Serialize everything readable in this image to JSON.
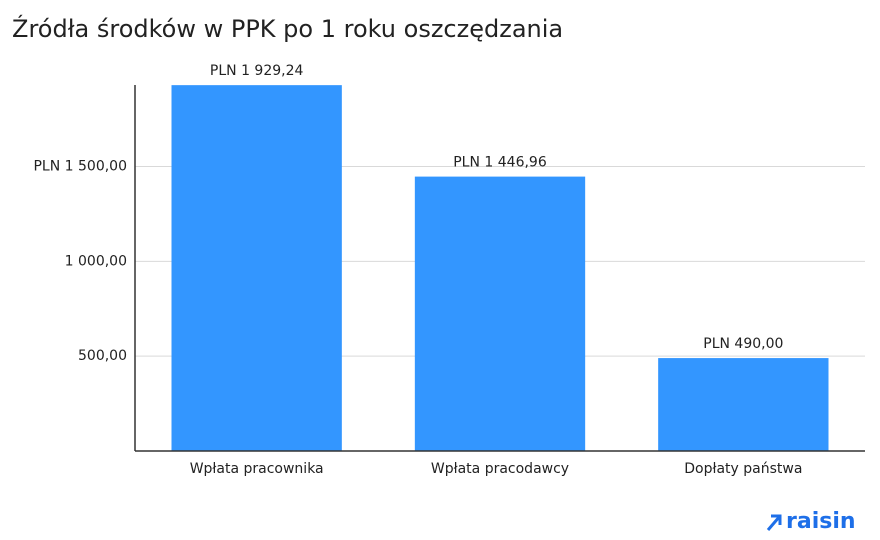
{
  "chart_data": {
    "type": "bar",
    "title": "Źródła środków w PPK po 1 roku oszczędzania",
    "categories": [
      "Wpłata pracownika",
      "Wpłata pracodawcy",
      "Dopłaty państwa"
    ],
    "values": [
      1929.24,
      1446.96,
      490
    ],
    "value_labels": [
      "PLN 1 929,24",
      "PLN 1 446,96",
      "PLN 490,00"
    ],
    "color": "#3396ff",
    "ylim": [
      0,
      1930
    ],
    "yticks": [
      {
        "value": 500,
        "label": "500,00"
      },
      {
        "value": 1000,
        "label": "1 000,00"
      },
      {
        "value": 1500,
        "label": "PLN 1 500,00"
      }
    ],
    "grid": true
  },
  "logo": "raisin"
}
